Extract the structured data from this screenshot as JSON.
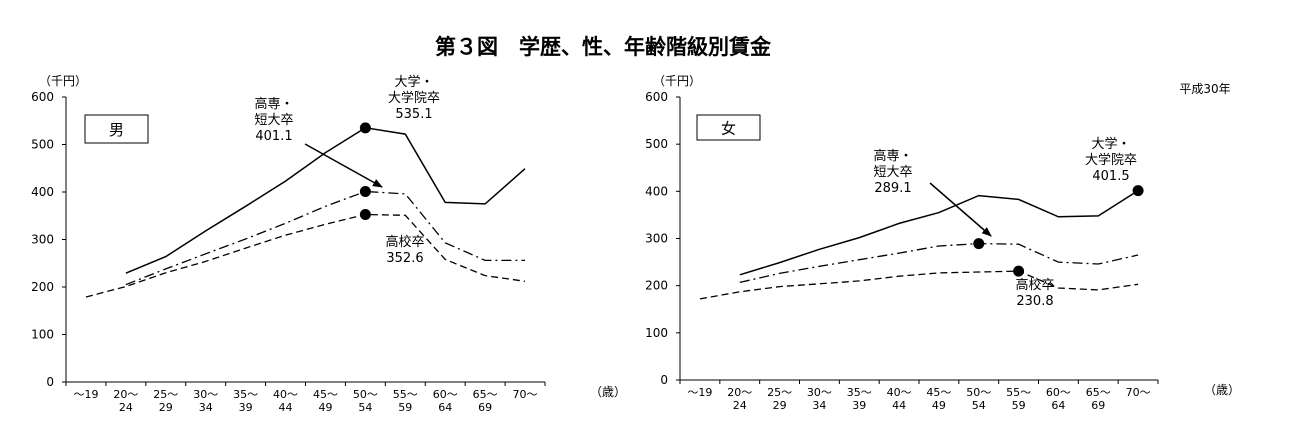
{
  "title": "第３図　学歴、性、年齢階級別賃金",
  "year_label": "平成30年",
  "chart_data": [
    {
      "type": "line",
      "panel_label": "男",
      "y_unit": "（千円）",
      "x_unit": "（歳）",
      "ylim": [
        0,
        600
      ],
      "yticks": [
        "0",
        "100",
        "200",
        "300",
        "400",
        "500",
        "600"
      ],
      "categories": [
        {
          "top": "～19",
          "bottom": ""
        },
        {
          "top": "20～",
          "bottom": "24"
        },
        {
          "top": "25～",
          "bottom": "29"
        },
        {
          "top": "30～",
          "bottom": "34"
        },
        {
          "top": "35～",
          "bottom": "39"
        },
        {
          "top": "40～",
          "bottom": "44"
        },
        {
          "top": "45～",
          "bottom": "49"
        },
        {
          "top": "50～",
          "bottom": "54"
        },
        {
          "top": "55～",
          "bottom": "59"
        },
        {
          "top": "60～",
          "bottom": "64"
        },
        {
          "top": "65～",
          "bottom": "69"
        },
        {
          "top": "70～",
          "bottom": ""
        }
      ],
      "series": [
        {
          "key": "univ",
          "style": "solid",
          "values": [
            null,
            229,
            264,
            318,
            370,
            423,
            483,
            535.1,
            522,
            378,
            375,
            449
          ]
        },
        {
          "key": "junior",
          "style": "dashdot",
          "values": [
            null,
            205,
            238,
            270,
            301,
            334,
            370,
            401.1,
            396,
            293,
            256,
            256
          ]
        },
        {
          "key": "high",
          "style": "dashed",
          "values": [
            179,
            201,
            230,
            254,
            282,
            309,
            332,
            352.6,
            351,
            258,
            224,
            212
          ]
        }
      ],
      "annotations": [
        {
          "lines": [
            "高専・",
            "短大卒",
            "401.1"
          ]
        },
        {
          "lines": [
            "大学・",
            "大学院卒",
            "535.1"
          ]
        },
        {
          "lines": [
            "高校卒",
            "352.6"
          ]
        }
      ]
    },
    {
      "type": "line",
      "panel_label": "女",
      "y_unit": "（千円）",
      "x_unit": "（歳）",
      "ylim": [
        0,
        600
      ],
      "yticks": [
        "0",
        "100",
        "200",
        "300",
        "400",
        "500",
        "600"
      ],
      "categories": [
        {
          "top": "～19",
          "bottom": ""
        },
        {
          "top": "20～",
          "bottom": "24"
        },
        {
          "top": "25～",
          "bottom": "29"
        },
        {
          "top": "30～",
          "bottom": "34"
        },
        {
          "top": "35～",
          "bottom": "39"
        },
        {
          "top": "40～",
          "bottom": "44"
        },
        {
          "top": "45～",
          "bottom": "49"
        },
        {
          "top": "50～",
          "bottom": "54"
        },
        {
          "top": "55～",
          "bottom": "59"
        },
        {
          "top": "60～",
          "bottom": "64"
        },
        {
          "top": "65～",
          "bottom": "69"
        },
        {
          "top": "70～",
          "bottom": ""
        }
      ],
      "series": [
        {
          "key": "univ",
          "style": "solid",
          "values": [
            null,
            223,
            249,
            277,
            302,
            332,
            355,
            391,
            383,
            346,
            348,
            401.5
          ]
        },
        {
          "key": "junior",
          "style": "dashdot",
          "values": [
            null,
            207,
            226,
            241,
            255,
            269,
            284,
            289.1,
            288,
            250,
            246,
            265
          ]
        },
        {
          "key": "high",
          "style": "dashed",
          "values": [
            172,
            187,
            198,
            204,
            210,
            220,
            227,
            229,
            230.8,
            195,
            191,
            203
          ]
        }
      ],
      "annotations": [
        {
          "lines": [
            "高専・",
            "短大卒",
            "289.1"
          ]
        },
        {
          "lines": [
            "大学・",
            "大学院卒",
            "401.5"
          ]
        },
        {
          "lines": [
            "高校卒",
            "230.8"
          ]
        }
      ]
    }
  ]
}
